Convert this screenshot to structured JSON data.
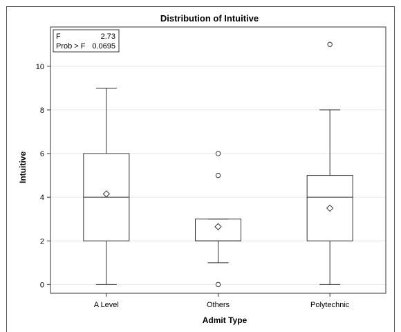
{
  "chart_data": {
    "type": "box",
    "title": "Distribution of Intuitive",
    "xlabel": "Admit Type",
    "ylabel": "Intuitive",
    "ylim": [
      -0.4,
      11.8
    ],
    "yticks": [
      0,
      2,
      4,
      6,
      8,
      10
    ],
    "grid": true,
    "categories": [
      "A Level",
      "Others",
      "Polytechnic"
    ],
    "boxes": [
      {
        "category": "A Level",
        "min": 0,
        "q1": 2,
        "median": 4,
        "q3": 6,
        "max": 9,
        "mean": 4.15,
        "outliers": []
      },
      {
        "category": "Others",
        "min": 1,
        "q1": 2,
        "median": 2,
        "q3": 3,
        "max": 3,
        "mean": 2.65,
        "outliers": [
          0,
          5,
          6
        ]
      },
      {
        "category": "Polytechnic",
        "min": 0,
        "q1": 2,
        "median": 4,
        "q3": 5,
        "max": 8,
        "mean": 3.5,
        "outliers": [
          11
        ]
      }
    ],
    "stats": {
      "f_label": "F",
      "f_value": "2.73",
      "prob_label": "Prob > F",
      "prob_value": "0.0695"
    },
    "colors": {
      "line": "#333333",
      "grid": "#e6e6e6",
      "text": "#000000"
    }
  }
}
